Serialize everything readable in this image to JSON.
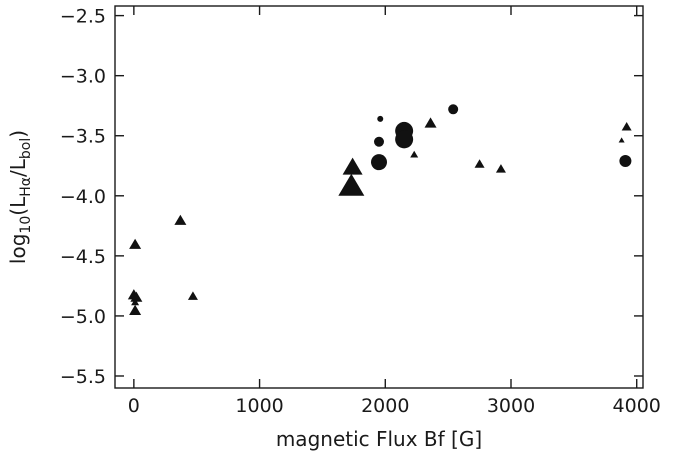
{
  "chart_data": {
    "type": "scatter",
    "title": "",
    "xlabel": "magnetic Flux Bf [G]",
    "ylabel": {
      "prefix": "log",
      "log_base": "10",
      "numerator": "L",
      "numerator_sub": "Hα",
      "divider": "/",
      "denominator": "L",
      "denominator_sub": "bol"
    },
    "xlim": [
      -150,
      4050
    ],
    "ylim": [
      -5.6,
      -2.42
    ],
    "x_ticks": [
      0,
      1000,
      2000,
      3000,
      4000
    ],
    "x_tick_labels": [
      "0",
      "1000",
      "2000",
      "3000",
      "4000"
    ],
    "y_ticks": [
      -2.5,
      -3.0,
      -3.5,
      -4.0,
      -4.5,
      -5.0,
      -5.5
    ],
    "y_tick_labels": [
      "−2.5",
      "−3.0",
      "−3.5",
      "−4.0",
      "−4.5",
      "−5.0",
      "−5.5"
    ],
    "grid": false,
    "legend": "none",
    "marker_color": "#111111",
    "points": [
      {
        "x": 10,
        "y": -4.41,
        "marker": "triangle",
        "size": 6
      },
      {
        "x": 0,
        "y": -4.83,
        "marker": "triangle",
        "size": 6
      },
      {
        "x": 20,
        "y": -4.85,
        "marker": "triangle",
        "size": 6
      },
      {
        "x": 10,
        "y": -4.89,
        "marker": "triangle",
        "size": 4
      },
      {
        "x": 10,
        "y": -4.96,
        "marker": "triangle",
        "size": 6
      },
      {
        "x": 370,
        "y": -4.21,
        "marker": "triangle",
        "size": 6
      },
      {
        "x": 470,
        "y": -4.84,
        "marker": "triangle",
        "size": 5
      },
      {
        "x": 1740,
        "y": -3.77,
        "marker": "triangle",
        "size": 10
      },
      {
        "x": 1730,
        "y": -3.93,
        "marker": "triangle",
        "size": 13
      },
      {
        "x": 1950,
        "y": -3.72,
        "marker": "circle",
        "size": 8
      },
      {
        "x": 1950,
        "y": -3.55,
        "marker": "circle",
        "size": 5
      },
      {
        "x": 1960,
        "y": -3.36,
        "marker": "circle",
        "size": 3
      },
      {
        "x": 2150,
        "y": -3.46,
        "marker": "circle",
        "size": 9
      },
      {
        "x": 2150,
        "y": -3.53,
        "marker": "circle",
        "size": 9
      },
      {
        "x": 2230,
        "y": -3.66,
        "marker": "triangle",
        "size": 4
      },
      {
        "x": 2360,
        "y": -3.4,
        "marker": "triangle",
        "size": 6
      },
      {
        "x": 2540,
        "y": -3.28,
        "marker": "circle",
        "size": 5
      },
      {
        "x": 2750,
        "y": -3.74,
        "marker": "triangle",
        "size": 5
      },
      {
        "x": 2920,
        "y": -3.78,
        "marker": "triangle",
        "size": 5
      },
      {
        "x": 3880,
        "y": -3.54,
        "marker": "triangle",
        "size": 3
      },
      {
        "x": 3920,
        "y": -3.43,
        "marker": "triangle",
        "size": 5
      },
      {
        "x": 3910,
        "y": -3.71,
        "marker": "circle",
        "size": 6
      }
    ]
  }
}
